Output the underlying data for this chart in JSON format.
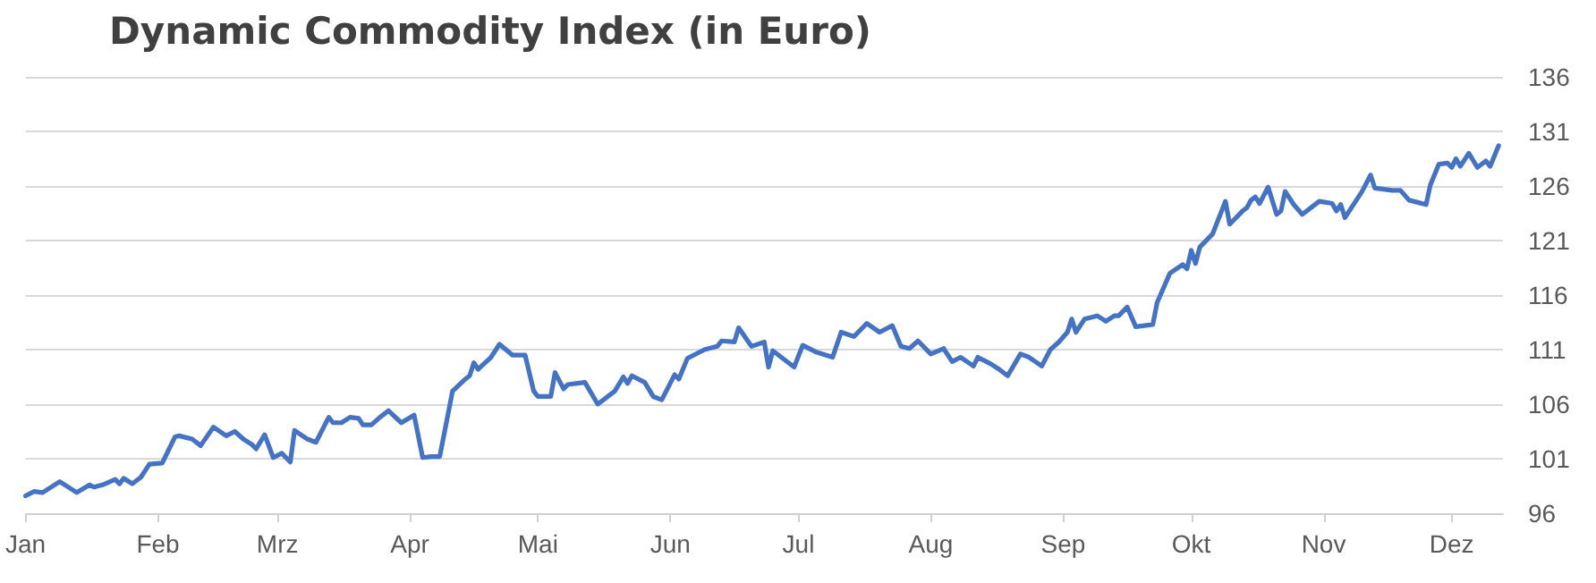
{
  "chart_data": {
    "type": "line",
    "title": "Dynamic Commodity Index (in Euro)",
    "x": [
      "--01-01",
      "--01-03",
      "--01-05",
      "--01-09",
      "--01-13",
      "--01-16",
      "--01-17",
      "--01-19",
      "--01-22",
      "--01-23",
      "--01-24",
      "--01-26",
      "--01-28",
      "--01-30",
      "--02-02",
      "--02-05",
      "--02-06",
      "--02-09",
      "--02-11",
      "--02-14",
      "--02-17",
      "--02-19",
      "--02-21",
      "--02-23",
      "--02-24",
      "--02-26",
      "--02-28",
      "--03-02",
      "--03-04",
      "--03-05",
      "--03-08",
      "--03-10",
      "--03-13",
      "--03-14",
      "--03-16",
      "--03-18",
      "--03-20",
      "--03-21",
      "--03-23",
      "--03-25",
      "--03-27",
      "--03-30",
      "--04-02",
      "--04-04",
      "--04-06",
      "--04-08",
      "--04-11",
      "--04-14",
      "--04-15",
      "--04-16",
      "--04-17",
      "--04-20",
      "--04-22",
      "--04-25",
      "--04-28",
      "--04-30",
      "--05-01",
      "--05-04",
      "--05-05",
      "--05-07",
      "--05-08",
      "--05-12",
      "--05-15",
      "--05-19",
      "--05-21",
      "--05-22",
      "--05-23",
      "--05-26",
      "--05-28",
      "--05-30",
      "--06-02",
      "--06-03",
      "--06-05",
      "--06-09",
      "--06-12",
      "--06-13",
      "--06-16",
      "--06-17",
      "--06-20",
      "--06-23",
      "--06-24",
      "--06-25",
      "--06-30",
      "--07-02",
      "--07-05",
      "--07-09",
      "--07-11",
      "--07-14",
      "--07-17",
      "--07-20",
      "--07-23",
      "--07-25",
      "--07-27",
      "--07-29",
      "--08-01",
      "--08-04",
      "--08-06",
      "--08-08",
      "--08-11",
      "--08-12",
      "--08-15",
      "--08-17",
      "--08-19",
      "--08-22",
      "--08-24",
      "--08-27",
      "--08-29",
      "--08-31",
      "--09-02",
      "--09-03",
      "--09-04",
      "--09-06",
      "--09-09",
      "--09-11",
      "--09-13",
      "--09-14",
      "--09-16",
      "--09-18",
      "--09-22",
      "--09-23",
      "--09-26",
      "--09-29",
      "--09-30",
      "--10-01",
      "--10-02",
      "--10-03",
      "--10-06",
      "--10-09",
      "--10-10",
      "--10-13",
      "--10-14",
      "--10-15",
      "--10-16",
      "--10-17",
      "--10-19",
      "--10-21",
      "--10-22",
      "--10-23",
      "--10-25",
      "--10-27",
      "--10-29",
      "--10-31",
      "--11-03",
      "--11-04",
      "--11-05",
      "--11-06",
      "--11-10",
      "--11-12",
      "--11-13",
      "--11-17",
      "--11-19",
      "--11-21",
      "--11-25",
      "--11-26",
      "--11-28",
      "--11-30",
      "--12-01",
      "--12-02",
      "--12-03",
      "--12-05",
      "--12-07",
      "--12-09",
      "--12-10",
      "--12-12"
    ],
    "series": [
      {
        "color": "#4472c4",
        "values": [
          97.6,
          98.0,
          97.9,
          98.9,
          97.9,
          98.6,
          98.4,
          98.6,
          99.1,
          98.7,
          99.2,
          98.7,
          99.3,
          100.5,
          100.6,
          103.0,
          103.1,
          102.8,
          102.2,
          103.9,
          103.1,
          103.5,
          102.8,
          102.3,
          101.9,
          103.2,
          101.1,
          101.5,
          100.7,
          103.6,
          102.8,
          102.5,
          104.8,
          104.3,
          104.3,
          104.8,
          104.7,
          104.1,
          104.1,
          104.8,
          105.4,
          104.3,
          105.0,
          101.1,
          101.2,
          101.2,
          107.2,
          108.3,
          108.6,
          109.8,
          109.2,
          110.3,
          111.5,
          110.5,
          110.5,
          107.2,
          106.7,
          106.7,
          108.9,
          107.4,
          107.8,
          108.0,
          106.0,
          107.2,
          108.5,
          107.9,
          108.6,
          108.0,
          106.7,
          106.4,
          108.7,
          108.3,
          110.2,
          111.0,
          111.3,
          111.8,
          111.7,
          113.0,
          111.3,
          111.7,
          109.4,
          110.9,
          109.4,
          111.4,
          110.8,
          110.3,
          112.6,
          112.2,
          113.4,
          112.6,
          113.2,
          111.3,
          111.1,
          111.8,
          110.6,
          111.1,
          109.9,
          110.3,
          109.5,
          110.3,
          109.7,
          109.2,
          108.6,
          110.6,
          110.3,
          109.5,
          111.0,
          111.7,
          112.6,
          113.8,
          112.6,
          113.8,
          114.1,
          113.6,
          114.1,
          114.1,
          114.9,
          113.1,
          113.3,
          115.3,
          118.0,
          118.8,
          118.4,
          120.1,
          118.9,
          120.4,
          121.6,
          124.6,
          122.5,
          123.7,
          124.0,
          124.7,
          125.0,
          124.4,
          125.9,
          123.4,
          123.7,
          125.5,
          124.3,
          123.4,
          124.0,
          124.6,
          124.4,
          123.7,
          124.3,
          123.1,
          125.5,
          127.0,
          125.8,
          125.6,
          125.6,
          124.7,
          124.3,
          126.1,
          128.0,
          128.1,
          127.7,
          128.5,
          127.8,
          129.0,
          127.7,
          128.3,
          127.8,
          129.7
        ]
      }
    ],
    "xlim": [
      "--01-01",
      "--12-13"
    ],
    "xticks": [
      {
        "value": "--01-01",
        "label": "Jan"
      },
      {
        "value": "--02-01",
        "label": "Feb"
      },
      {
        "value": "--03-01",
        "label": "Mrz"
      },
      {
        "value": "--04-01",
        "label": "Apr"
      },
      {
        "value": "--05-01",
        "label": "Mai"
      },
      {
        "value": "--06-01",
        "label": "Jun"
      },
      {
        "value": "--07-01",
        "label": "Jul"
      },
      {
        "value": "--08-01",
        "label": "Aug"
      },
      {
        "value": "--09-01",
        "label": "Sep"
      },
      {
        "value": "--10-01",
        "label": "Okt"
      },
      {
        "value": "--11-01",
        "label": "Nov"
      },
      {
        "value": "--12-01",
        "label": "Dez"
      }
    ],
    "ylim": [
      96,
      136
    ],
    "yticks": [
      96,
      101,
      106,
      111,
      116,
      121,
      126,
      131,
      136
    ],
    "grid": "y",
    "marker": "none",
    "line_style": "solid"
  }
}
